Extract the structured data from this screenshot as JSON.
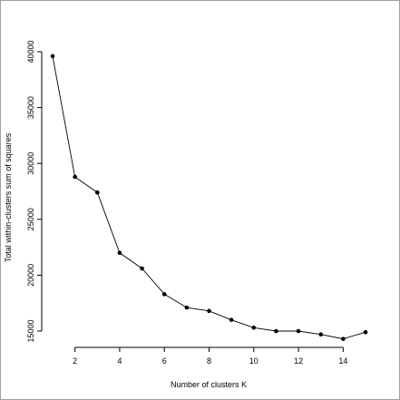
{
  "chart_data": {
    "type": "line",
    "title": "",
    "xlabel": "Number of clusters K",
    "ylabel": "Total within-clusters sum of squares",
    "x": [
      1,
      2,
      3,
      4,
      5,
      6,
      7,
      8,
      9,
      10,
      11,
      12,
      13,
      14,
      15
    ],
    "y": [
      39600,
      28800,
      27400,
      22000,
      20600,
      18300,
      17100,
      16800,
      16000,
      15300,
      15000,
      15000,
      14700,
      14300,
      14900
    ],
    "xlim": [
      1,
      15
    ],
    "ylim": [
      15000,
      40000
    ],
    "xticks": [
      2,
      4,
      6,
      8,
      10,
      12,
      14
    ],
    "xtick_labels": [
      "2",
      "4",
      "6",
      "8",
      "10",
      "12",
      "14"
    ],
    "yticks": [
      15000,
      20000,
      25000,
      30000,
      35000,
      40000
    ],
    "ytick_labels": [
      "15000",
      "20000",
      "25000",
      "30000",
      "35000",
      "40000"
    ],
    "grid": false,
    "markers": "filled-circle",
    "line_color": "#000000"
  }
}
